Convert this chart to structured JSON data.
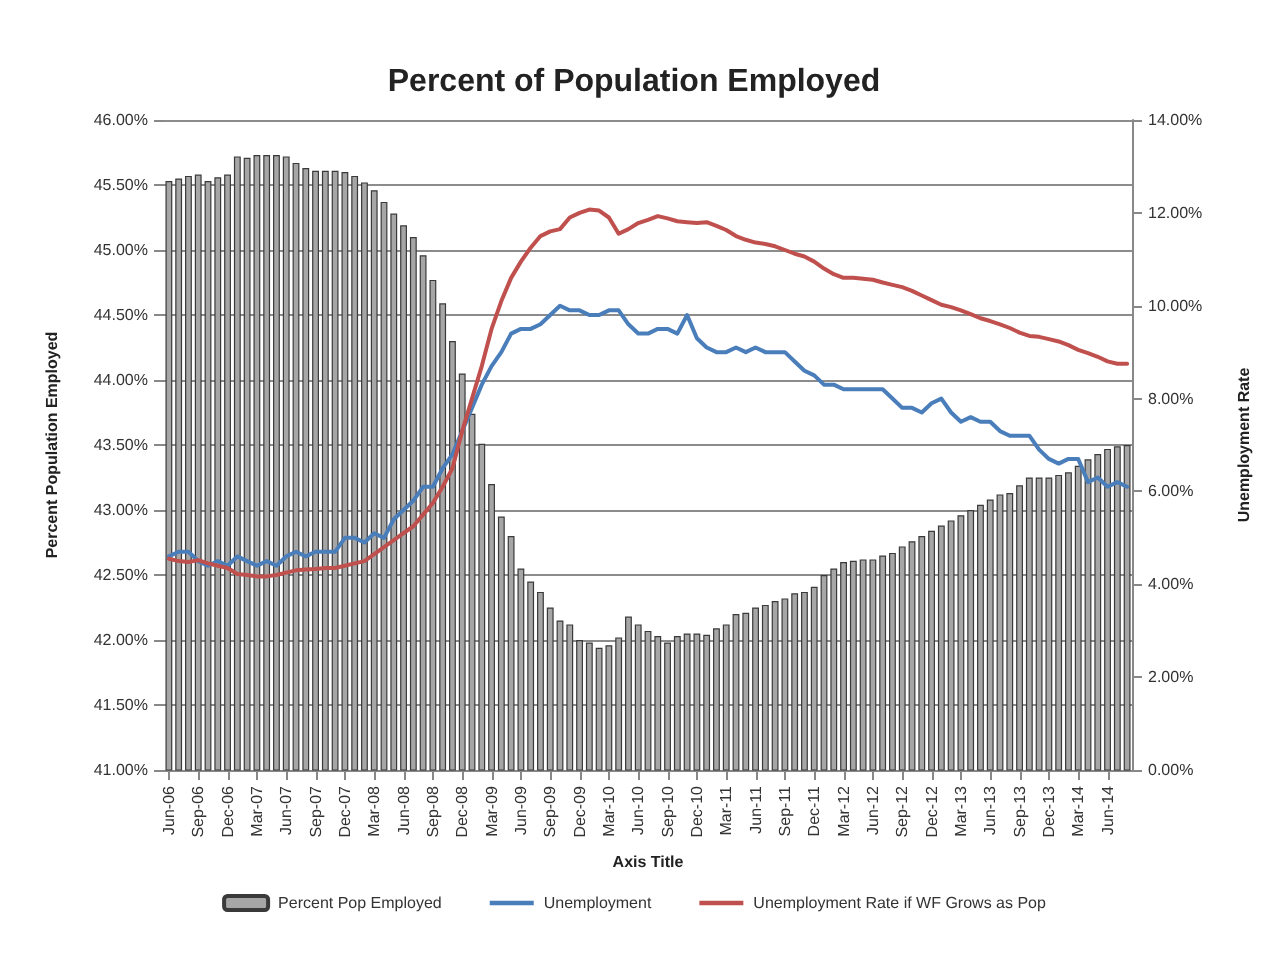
{
  "chart_data": {
    "type": "bar",
    "title": "Percent of Population Employed",
    "xlabel": "Axis Title",
    "ylabel": "Percent Population Employed",
    "y2label": "Unemployment Rate",
    "categories": [
      "Jun-06",
      null,
      null,
      "Sep-06",
      null,
      null,
      "Dec-06",
      null,
      null,
      "Mar-07",
      null,
      null,
      "Jun-07",
      null,
      null,
      "Sep-07",
      null,
      null,
      "Dec-07",
      null,
      null,
      "Mar-08",
      null,
      null,
      "Jun-08",
      null,
      null,
      "Sep-08",
      null,
      null,
      "Dec-08",
      null,
      null,
      "Mar-09",
      null,
      null,
      "Jun-09",
      null,
      null,
      "Sep-09",
      null,
      null,
      "Dec-09",
      null,
      null,
      "Mar-10",
      null,
      null,
      "Jun-10",
      null,
      null,
      "Sep-10",
      null,
      null,
      "Dec-10",
      null,
      null,
      "Mar-11",
      null,
      null,
      "Jun-11",
      null,
      null,
      "Sep-11",
      null,
      null,
      "Dec-11",
      null,
      null,
      "Mar-12",
      null,
      null,
      "Jun-12",
      null,
      null,
      "Sep-12",
      null,
      null,
      "Dec-12",
      null,
      null,
      "Mar-13",
      null,
      null,
      "Jun-13",
      null,
      null,
      "Sep-13",
      null,
      null,
      "Dec-13",
      null,
      null,
      "Mar-14",
      null,
      null,
      "Jun-14",
      null,
      null
    ],
    "series": [
      {
        "name": "Percent Pop Employed",
        "color": "#a6a6a6",
        "values": [
          45.53,
          45.55,
          45.57,
          45.58,
          45.53,
          45.56,
          45.58,
          45.72,
          45.71,
          45.73,
          45.73,
          45.73,
          45.72,
          45.67,
          45.63,
          45.61,
          45.61,
          45.61,
          45.6,
          45.57,
          45.52,
          45.46,
          45.37,
          45.28,
          45.19,
          45.1,
          44.96,
          44.77,
          44.59,
          44.3,
          44.05,
          43.74,
          43.51,
          43.2,
          42.95,
          42.8,
          42.55,
          42.45,
          42.37,
          42.25,
          42.15,
          42.12,
          42.0,
          41.98,
          41.94,
          41.96,
          42.02,
          42.18,
          42.12,
          42.07,
          42.03,
          41.98,
          42.03,
          42.05,
          42.05,
          42.04,
          42.09,
          42.12,
          42.2,
          42.21,
          42.25,
          42.27,
          42.3,
          42.32,
          42.36,
          42.37,
          42.41,
          42.5,
          42.55,
          42.6,
          42.61,
          42.62,
          42.62,
          42.65,
          42.67,
          42.72,
          42.76,
          42.8,
          42.84,
          42.88,
          42.92,
          42.96,
          43.0,
          43.04,
          43.08,
          43.12,
          43.13,
          43.19,
          43.25,
          43.25,
          43.25,
          43.27,
          43.29,
          43.34,
          43.39,
          43.43,
          43.47,
          43.49,
          43.5
        ]
      },
      {
        "name": "Unemployment",
        "type": "line",
        "axis": "y2",
        "color": "#4a7ebb",
        "values": [
          4.6,
          4.7,
          4.7,
          4.5,
          4.4,
          4.5,
          4.4,
          4.6,
          4.5,
          4.4,
          4.5,
          4.4,
          4.6,
          4.7,
          4.6,
          4.7,
          4.7,
          4.7,
          5.0,
          5.0,
          4.9,
          5.1,
          5.0,
          5.4,
          5.6,
          5.8,
          6.1,
          6.1,
          6.5,
          6.8,
          7.3,
          7.8,
          8.3,
          8.7,
          9.0,
          9.4,
          9.5,
          9.5,
          9.6,
          9.8,
          10.0,
          9.9,
          9.9,
          9.8,
          9.8,
          9.9,
          9.9,
          9.6,
          9.4,
          9.4,
          9.5,
          9.5,
          9.4,
          9.8,
          9.3,
          9.1,
          9.0,
          9.0,
          9.1,
          9.0,
          9.1,
          9.0,
          9.0,
          9.0,
          8.8,
          8.6,
          8.5,
          8.3,
          8.3,
          8.2,
          8.2,
          8.2,
          8.2,
          8.2,
          8.0,
          7.8,
          7.8,
          7.7,
          7.9,
          8.0,
          7.7,
          7.5,
          7.6,
          7.5,
          7.5,
          7.3,
          7.2,
          7.2,
          7.2,
          6.9,
          6.7,
          6.6,
          6.7,
          6.7,
          6.2,
          6.3,
          6.1,
          6.2,
          6.1
        ]
      },
      {
        "name": "Unemployment Rate if WF Grows as Pop",
        "type": "line",
        "axis": "y2",
        "color": "#c0504d",
        "values": [
          4.55,
          4.5,
          4.48,
          4.52,
          4.45,
          4.4,
          4.35,
          4.22,
          4.2,
          4.17,
          4.17,
          4.2,
          4.25,
          4.3,
          4.32,
          4.33,
          4.35,
          4.35,
          4.4,
          4.45,
          4.5,
          4.65,
          4.8,
          4.95,
          5.1,
          5.25,
          5.5,
          5.75,
          6.1,
          6.5,
          7.3,
          8.0,
          8.7,
          9.5,
          10.1,
          10.6,
          10.95,
          11.25,
          11.5,
          11.6,
          11.65,
          11.9,
          12.0,
          12.07,
          12.05,
          11.9,
          11.55,
          11.65,
          11.78,
          11.85,
          11.93,
          11.88,
          11.82,
          11.8,
          11.78,
          11.8,
          11.72,
          11.63,
          11.5,
          11.42,
          11.36,
          11.33,
          11.28,
          11.2,
          11.12,
          11.06,
          10.95,
          10.8,
          10.68,
          10.6,
          10.6,
          10.58,
          10.56,
          10.5,
          10.45,
          10.4,
          10.32,
          10.22,
          10.12,
          10.02,
          9.97,
          9.9,
          9.82,
          9.73,
          9.67,
          9.6,
          9.52,
          9.42,
          9.35,
          9.33,
          9.28,
          9.23,
          9.15,
          9.05,
          8.98,
          8.9,
          8.8,
          8.75,
          8.75
        ]
      }
    ],
    "ylim": [
      41,
      46
    ],
    "yticks": [
      {
        "value": 41,
        "label": "41.00%"
      },
      {
        "value": 41.5,
        "label": "41.50%"
      },
      {
        "value": 42,
        "label": "42.00%"
      },
      {
        "value": 42.5,
        "label": "42.50%"
      },
      {
        "value": 43,
        "label": "43.00%"
      },
      {
        "value": 43.5,
        "label": "43.50%"
      },
      {
        "value": 44,
        "label": "44.00%"
      },
      {
        "value": 44.5,
        "label": "44.50%"
      },
      {
        "value": 45,
        "label": "45.00%"
      },
      {
        "value": 45.5,
        "label": "45.50%"
      },
      {
        "value": 46,
        "label": "46.00%"
      }
    ],
    "y2lim": [
      0,
      14
    ],
    "y2ticks": [
      {
        "value": 0,
        "label": "0.00%"
      },
      {
        "value": 2,
        "label": "2.00%"
      },
      {
        "value": 4,
        "label": "4.00%"
      },
      {
        "value": 6,
        "label": "6.00%"
      },
      {
        "value": 8,
        "label": "8.00%"
      },
      {
        "value": 10,
        "label": "10.00%"
      },
      {
        "value": 12,
        "label": "12.00%"
      },
      {
        "value": 14,
        "label": "14.00%"
      }
    ],
    "grid": "y",
    "legend": "bottom",
    "marker": "none",
    "line_style": "solid"
  }
}
